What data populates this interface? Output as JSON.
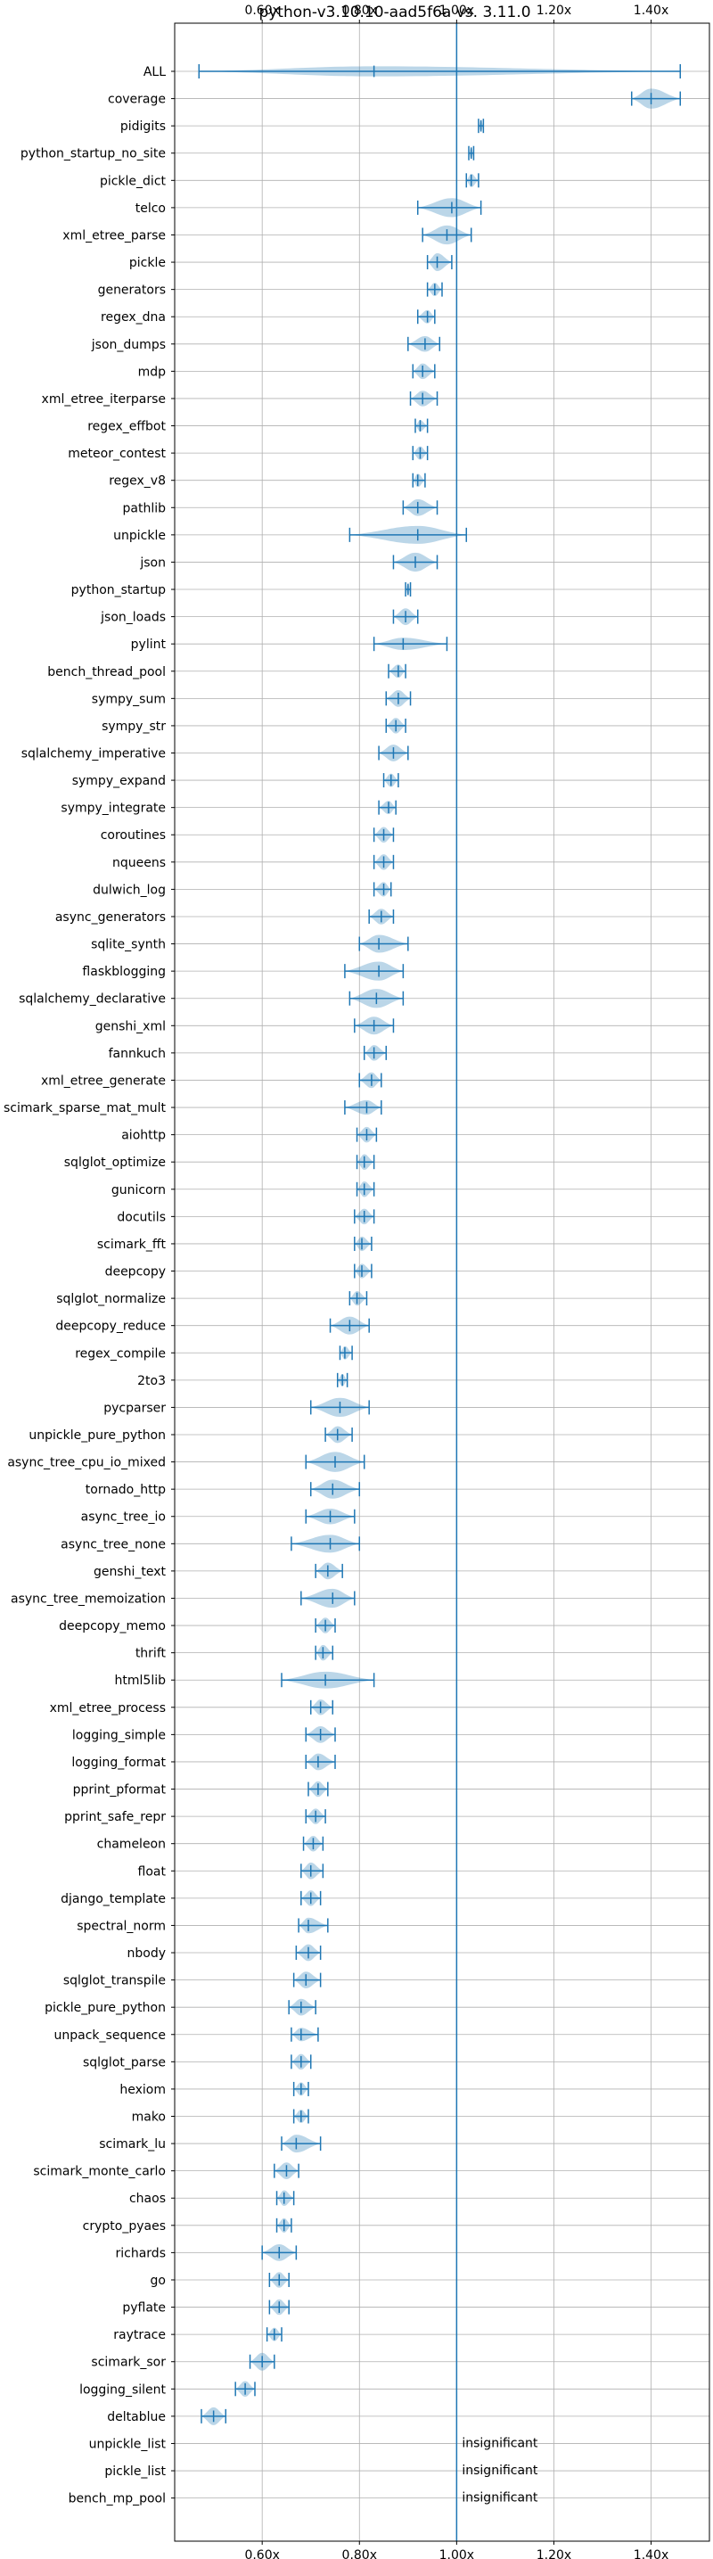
{
  "chart_data": {
    "type": "violin",
    "title": "python-v3.10.10-aad5f6a vs. 3.11.0",
    "xlim": [
      0.42,
      1.52
    ],
    "xticks": [
      {
        "value": 0.6,
        "label": "0.60x"
      },
      {
        "value": 0.8,
        "label": "0.80x"
      },
      {
        "value": 1.0,
        "label": "1.00x"
      },
      {
        "value": 1.2,
        "label": "1.20x"
      },
      {
        "value": 1.4,
        "label": "1.40x"
      }
    ],
    "reference_line": 1.0,
    "grid": true,
    "colors": {
      "violin": "#1f77b4",
      "reference": "#1f77b4"
    },
    "insignificant_label": "insignificant",
    "benchmarks": [
      {
        "name": "ALL",
        "min": 0.47,
        "max": 1.46,
        "center": 0.83,
        "width": 0.45
      },
      {
        "name": "coverage",
        "min": 1.36,
        "max": 1.46,
        "center": 1.4,
        "width": 0.9
      },
      {
        "name": "pidigits",
        "min": 1.045,
        "max": 1.055,
        "center": 1.05,
        "width": 0.5
      },
      {
        "name": "python_startup_no_site",
        "min": 1.025,
        "max": 1.035,
        "center": 1.03,
        "width": 0.5
      },
      {
        "name": "pickle_dict",
        "min": 1.02,
        "max": 1.045,
        "center": 1.03,
        "width": 0.6
      },
      {
        "name": "telco",
        "min": 0.92,
        "max": 1.05,
        "center": 0.99,
        "width": 0.85
      },
      {
        "name": "xml_etree_parse",
        "min": 0.93,
        "max": 1.03,
        "center": 0.98,
        "width": 0.85
      },
      {
        "name": "pickle",
        "min": 0.94,
        "max": 0.99,
        "center": 0.96,
        "width": 0.8
      },
      {
        "name": "generators",
        "min": 0.94,
        "max": 0.97,
        "center": 0.955,
        "width": 0.6
      },
      {
        "name": "regex_dna",
        "min": 0.92,
        "max": 0.955,
        "center": 0.94,
        "width": 0.6
      },
      {
        "name": "json_dumps",
        "min": 0.9,
        "max": 0.965,
        "center": 0.935,
        "width": 0.7
      },
      {
        "name": "mdp",
        "min": 0.91,
        "max": 0.955,
        "center": 0.93,
        "width": 0.7
      },
      {
        "name": "xml_etree_iterparse",
        "min": 0.905,
        "max": 0.96,
        "center": 0.93,
        "width": 0.7
      },
      {
        "name": "regex_effbot",
        "min": 0.915,
        "max": 0.94,
        "center": 0.925,
        "width": 0.5
      },
      {
        "name": "meteor_contest",
        "min": 0.91,
        "max": 0.94,
        "center": 0.925,
        "width": 0.6
      },
      {
        "name": "regex_v8",
        "min": 0.91,
        "max": 0.935,
        "center": 0.92,
        "width": 0.6
      },
      {
        "name": "pathlib",
        "min": 0.89,
        "max": 0.96,
        "center": 0.92,
        "width": 0.75
      },
      {
        "name": "unpickle",
        "min": 0.78,
        "max": 1.02,
        "center": 0.92,
        "width": 0.8
      },
      {
        "name": "json",
        "min": 0.87,
        "max": 0.96,
        "center": 0.915,
        "width": 0.85
      },
      {
        "name": "python_startup",
        "min": 0.895,
        "max": 0.905,
        "center": 0.9,
        "width": 0.5
      },
      {
        "name": "json_loads",
        "min": 0.87,
        "max": 0.92,
        "center": 0.895,
        "width": 0.75
      },
      {
        "name": "pylint",
        "min": 0.83,
        "max": 0.98,
        "center": 0.89,
        "width": 0.55
      },
      {
        "name": "bench_thread_pool",
        "min": 0.86,
        "max": 0.895,
        "center": 0.88,
        "width": 0.6
      },
      {
        "name": "sympy_sum",
        "min": 0.855,
        "max": 0.905,
        "center": 0.88,
        "width": 0.75
      },
      {
        "name": "sympy_str",
        "min": 0.855,
        "max": 0.895,
        "center": 0.875,
        "width": 0.7
      },
      {
        "name": "sqlalchemy_imperative",
        "min": 0.84,
        "max": 0.9,
        "center": 0.87,
        "width": 0.75
      },
      {
        "name": "sympy_expand",
        "min": 0.85,
        "max": 0.88,
        "center": 0.865,
        "width": 0.6
      },
      {
        "name": "sympy_integrate",
        "min": 0.84,
        "max": 0.875,
        "center": 0.86,
        "width": 0.6
      },
      {
        "name": "coroutines",
        "min": 0.83,
        "max": 0.87,
        "center": 0.85,
        "width": 0.7
      },
      {
        "name": "nqueens",
        "min": 0.83,
        "max": 0.87,
        "center": 0.85,
        "width": 0.7
      },
      {
        "name": "dulwich_log",
        "min": 0.83,
        "max": 0.865,
        "center": 0.85,
        "width": 0.65
      },
      {
        "name": "async_generators",
        "min": 0.82,
        "max": 0.87,
        "center": 0.845,
        "width": 0.7
      },
      {
        "name": "sqlite_synth",
        "min": 0.8,
        "max": 0.9,
        "center": 0.84,
        "width": 0.8
      },
      {
        "name": "flaskblogging",
        "min": 0.77,
        "max": 0.89,
        "center": 0.84,
        "width": 0.85
      },
      {
        "name": "sqlalchemy_declarative",
        "min": 0.78,
        "max": 0.89,
        "center": 0.835,
        "width": 0.85
      },
      {
        "name": "genshi_xml",
        "min": 0.79,
        "max": 0.87,
        "center": 0.83,
        "width": 0.8
      },
      {
        "name": "fannkuch",
        "min": 0.81,
        "max": 0.855,
        "center": 0.83,
        "width": 0.7
      },
      {
        "name": "xml_etree_generate",
        "min": 0.8,
        "max": 0.845,
        "center": 0.825,
        "width": 0.7
      },
      {
        "name": "scimark_sparse_mat_mult",
        "min": 0.77,
        "max": 0.845,
        "center": 0.815,
        "width": 0.65
      },
      {
        "name": "aiohttp",
        "min": 0.795,
        "max": 0.835,
        "center": 0.815,
        "width": 0.7
      },
      {
        "name": "sqlglot_optimize",
        "min": 0.795,
        "max": 0.83,
        "center": 0.81,
        "width": 0.7
      },
      {
        "name": "gunicorn",
        "min": 0.795,
        "max": 0.83,
        "center": 0.81,
        "width": 0.7
      },
      {
        "name": "docutils",
        "min": 0.79,
        "max": 0.83,
        "center": 0.81,
        "width": 0.7
      },
      {
        "name": "scimark_fft",
        "min": 0.79,
        "max": 0.825,
        "center": 0.805,
        "width": 0.65
      },
      {
        "name": "deepcopy",
        "min": 0.79,
        "max": 0.825,
        "center": 0.805,
        "width": 0.65
      },
      {
        "name": "sqlglot_normalize",
        "min": 0.78,
        "max": 0.815,
        "center": 0.795,
        "width": 0.65
      },
      {
        "name": "deepcopy_reduce",
        "min": 0.74,
        "max": 0.82,
        "center": 0.78,
        "width": 0.8
      },
      {
        "name": "regex_compile",
        "min": 0.76,
        "max": 0.785,
        "center": 0.77,
        "width": 0.6
      },
      {
        "name": "2to3",
        "min": 0.755,
        "max": 0.775,
        "center": 0.765,
        "width": 0.55
      },
      {
        "name": "pycparser",
        "min": 0.7,
        "max": 0.82,
        "center": 0.76,
        "width": 0.85
      },
      {
        "name": "unpickle_pure_python",
        "min": 0.73,
        "max": 0.785,
        "center": 0.755,
        "width": 0.75
      },
      {
        "name": "async_tree_cpu_io_mixed",
        "min": 0.69,
        "max": 0.81,
        "center": 0.75,
        "width": 0.9
      },
      {
        "name": "tornado_http",
        "min": 0.7,
        "max": 0.8,
        "center": 0.745,
        "width": 0.85
      },
      {
        "name": "async_tree_io",
        "min": 0.69,
        "max": 0.79,
        "center": 0.74,
        "width": 0.7
      },
      {
        "name": "async_tree_none",
        "min": 0.66,
        "max": 0.8,
        "center": 0.74,
        "width": 0.8
      },
      {
        "name": "genshi_text",
        "min": 0.71,
        "max": 0.765,
        "center": 0.735,
        "width": 0.75
      },
      {
        "name": "async_tree_memoization",
        "min": 0.68,
        "max": 0.79,
        "center": 0.745,
        "width": 0.85
      },
      {
        "name": "deepcopy_memo",
        "min": 0.71,
        "max": 0.75,
        "center": 0.73,
        "width": 0.7
      },
      {
        "name": "thrift",
        "min": 0.71,
        "max": 0.745,
        "center": 0.725,
        "width": 0.7
      },
      {
        "name": "html5lib",
        "min": 0.64,
        "max": 0.83,
        "center": 0.73,
        "width": 0.75
      },
      {
        "name": "xml_etree_process",
        "min": 0.7,
        "max": 0.745,
        "center": 0.72,
        "width": 0.7
      },
      {
        "name": "logging_simple",
        "min": 0.69,
        "max": 0.75,
        "center": 0.72,
        "width": 0.75
      },
      {
        "name": "logging_format",
        "min": 0.69,
        "max": 0.75,
        "center": 0.715,
        "width": 0.75
      },
      {
        "name": "pprint_pformat",
        "min": 0.695,
        "max": 0.735,
        "center": 0.715,
        "width": 0.7
      },
      {
        "name": "pprint_safe_repr",
        "min": 0.69,
        "max": 0.73,
        "center": 0.71,
        "width": 0.7
      },
      {
        "name": "chameleon",
        "min": 0.685,
        "max": 0.725,
        "center": 0.705,
        "width": 0.7
      },
      {
        "name": "float",
        "min": 0.68,
        "max": 0.725,
        "center": 0.7,
        "width": 0.75
      },
      {
        "name": "django_template",
        "min": 0.68,
        "max": 0.72,
        "center": 0.7,
        "width": 0.7
      },
      {
        "name": "spectral_norm",
        "min": 0.675,
        "max": 0.735,
        "center": 0.695,
        "width": 0.7
      },
      {
        "name": "nbody",
        "min": 0.67,
        "max": 0.72,
        "center": 0.695,
        "width": 0.75
      },
      {
        "name": "sqlglot_transpile",
        "min": 0.665,
        "max": 0.72,
        "center": 0.69,
        "width": 0.75
      },
      {
        "name": "pickle_pure_python",
        "min": 0.655,
        "max": 0.71,
        "center": 0.68,
        "width": 0.75
      },
      {
        "name": "unpack_sequence",
        "min": 0.66,
        "max": 0.715,
        "center": 0.68,
        "width": 0.6
      },
      {
        "name": "sqlglot_parse",
        "min": 0.66,
        "max": 0.7,
        "center": 0.68,
        "width": 0.7
      },
      {
        "name": "hexiom",
        "min": 0.665,
        "max": 0.695,
        "center": 0.68,
        "width": 0.6
      },
      {
        "name": "mako",
        "min": 0.665,
        "max": 0.695,
        "center": 0.68,
        "width": 0.6
      },
      {
        "name": "scimark_lu",
        "min": 0.64,
        "max": 0.72,
        "center": 0.67,
        "width": 0.8
      },
      {
        "name": "scimark_monte_carlo",
        "min": 0.625,
        "max": 0.675,
        "center": 0.65,
        "width": 0.75
      },
      {
        "name": "chaos",
        "min": 0.63,
        "max": 0.665,
        "center": 0.645,
        "width": 0.7
      },
      {
        "name": "crypto_pyaes",
        "min": 0.63,
        "max": 0.66,
        "center": 0.645,
        "width": 0.65
      },
      {
        "name": "richards",
        "min": 0.6,
        "max": 0.67,
        "center": 0.635,
        "width": 0.75
      },
      {
        "name": "go",
        "min": 0.615,
        "max": 0.655,
        "center": 0.635,
        "width": 0.7
      },
      {
        "name": "pyflate",
        "min": 0.615,
        "max": 0.655,
        "center": 0.635,
        "width": 0.7
      },
      {
        "name": "raytrace",
        "min": 0.61,
        "max": 0.64,
        "center": 0.625,
        "width": 0.6
      },
      {
        "name": "scimark_sor",
        "min": 0.575,
        "max": 0.625,
        "center": 0.6,
        "width": 0.8
      },
      {
        "name": "logging_silent",
        "min": 0.545,
        "max": 0.585,
        "center": 0.565,
        "width": 0.7
      },
      {
        "name": "deltablue",
        "min": 0.475,
        "max": 0.525,
        "center": 0.5,
        "width": 0.8
      },
      {
        "name": "unpickle_list",
        "insignificant": true
      },
      {
        "name": "pickle_list",
        "insignificant": true
      },
      {
        "name": "bench_mp_pool",
        "insignificant": true
      }
    ]
  }
}
